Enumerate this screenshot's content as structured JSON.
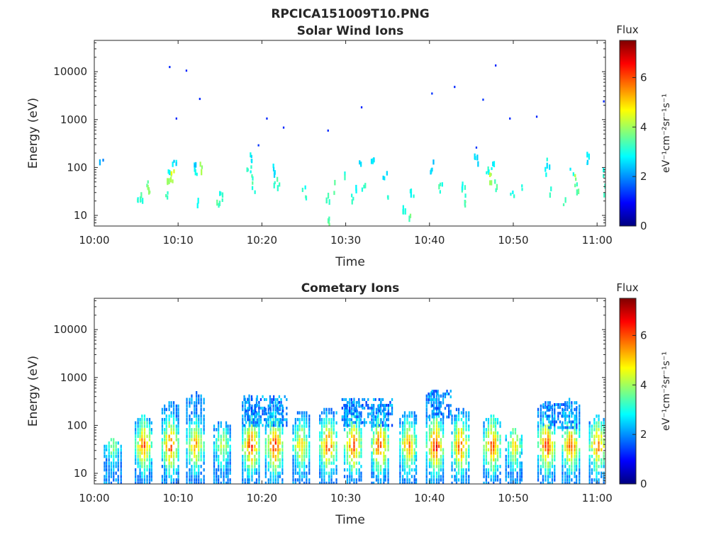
{
  "figure_title": "RPCICA151009T10.PNG",
  "colormap": [
    "#00007f",
    "#0000ff",
    "#007fff",
    "#00ffff",
    "#7fff7f",
    "#ffff00",
    "#ff7f00",
    "#ff0000",
    "#7f0000"
  ],
  "chart_data": [
    {
      "type": "heatmap",
      "title": "Solar Wind Ions",
      "xlabel": "Time",
      "ylabel": "Energy (eV)",
      "yscale": "log",
      "xlim": [
        0,
        61
      ],
      "ylim": [
        6,
        45000
      ],
      "x_ticks": [
        0,
        10,
        20,
        30,
        40,
        50,
        60
      ],
      "x_tick_labels": [
        "10:00",
        "10:10",
        "10:20",
        "10:30",
        "10:40",
        "10:50",
        "11:00"
      ],
      "y_ticks": [
        10,
        100,
        1000,
        10000
      ],
      "y_tick_labels": [
        "10",
        "100",
        "1000",
        "10000"
      ],
      "colorbar": {
        "title": "Flux",
        "unit_label": "eV⁻¹cm⁻²sr⁻¹s⁻¹",
        "range": [
          0,
          7.5
        ],
        "ticks": [
          0,
          2,
          4,
          6
        ],
        "tick_labels": [
          "0",
          "2",
          "4",
          "6"
        ]
      },
      "points": [
        [
          0.8,
          110,
          2.2
        ],
        [
          5.2,
          25,
          3
        ],
        [
          5.6,
          20,
          3.2
        ],
        [
          6.1,
          40,
          3.6
        ],
        [
          6.4,
          38,
          3.8
        ],
        [
          8.6,
          30,
          3.4
        ],
        [
          8.8,
          55,
          4
        ],
        [
          9.0,
          85,
          2.8
        ],
        [
          9.3,
          65,
          4.3
        ],
        [
          9.5,
          120,
          2.6
        ],
        [
          11.8,
          90,
          2.6
        ],
        [
          12.1,
          70,
          3.2
        ],
        [
          12.4,
          20,
          3.0
        ],
        [
          12.8,
          100,
          3.8
        ],
        [
          14.8,
          15,
          3.4
        ],
        [
          15.0,
          25,
          3.2
        ],
        [
          18.4,
          90,
          3.0
        ],
        [
          18.7,
          60,
          3.3
        ],
        [
          18.9,
          40,
          2.8
        ],
        [
          18.6,
          180,
          2.7
        ],
        [
          21.3,
          90,
          2.8
        ],
        [
          21.6,
          50,
          3.4
        ],
        [
          21.9,
          38,
          3.0
        ],
        [
          25.0,
          30,
          3.1
        ],
        [
          27.8,
          20,
          3.2
        ],
        [
          28.0,
          8,
          3.4
        ],
        [
          28.5,
          38,
          3.3
        ],
        [
          30.0,
          70,
          3.0
        ],
        [
          30.8,
          25,
          3.1
        ],
        [
          31.3,
          35,
          2.9
        ],
        [
          31.7,
          100,
          2.8
        ],
        [
          32.0,
          40,
          3.1
        ],
        [
          33.2,
          110,
          2.6
        ],
        [
          34.6,
          70,
          2.8
        ],
        [
          35.0,
          30,
          3.0
        ],
        [
          37.0,
          15,
          3.2
        ],
        [
          37.4,
          8,
          3.5
        ],
        [
          37.8,
          25,
          3.0
        ],
        [
          40.2,
          100,
          2.5
        ],
        [
          41.3,
          35,
          3.2
        ],
        [
          43.8,
          40,
          3.1
        ],
        [
          44.0,
          30,
          3.0
        ],
        [
          44.3,
          15,
          3.3
        ],
        [
          45.5,
          150,
          2.4
        ],
        [
          46.8,
          70,
          3.0
        ],
        [
          47.2,
          55,
          4.1
        ],
        [
          47.5,
          90,
          2.8
        ],
        [
          47.8,
          40,
          3.4
        ],
        [
          49.8,
          30,
          3.0
        ],
        [
          51.0,
          35,
          3.1
        ],
        [
          53.9,
          70,
          3.0
        ],
        [
          54.1,
          120,
          2.8
        ],
        [
          54.3,
          30,
          3.3
        ],
        [
          56.0,
          20,
          3.2
        ],
        [
          56.9,
          80,
          2.8
        ],
        [
          57.2,
          60,
          4.0
        ],
        [
          57.5,
          40,
          3.4
        ],
        [
          58.8,
          160,
          2.6
        ],
        [
          60.5,
          70,
          3.0
        ],
        [
          60.8,
          35,
          3.2
        ]
      ],
      "sparse_points": [
        [
          8.9,
          12500,
          1.2
        ],
        [
          10.9,
          10500,
          1.2
        ],
        [
          12.5,
          2700,
          1.2
        ],
        [
          9.7,
          1050,
          1.2
        ],
        [
          19.5,
          290,
          1.3
        ],
        [
          20.5,
          1050,
          1.2
        ],
        [
          22.5,
          680,
          1.2
        ],
        [
          27.8,
          590,
          1.2
        ],
        [
          31.8,
          1800,
          1.2
        ],
        [
          40.2,
          3500,
          1.3
        ],
        [
          42.9,
          4800,
          1.2
        ],
        [
          45.5,
          260,
          1.3
        ],
        [
          46.3,
          2600,
          1.3
        ],
        [
          47.8,
          13500,
          1.2
        ],
        [
          49.5,
          1050,
          1.2
        ],
        [
          52.7,
          1150,
          1.2
        ],
        [
          60.7,
          2400,
          1.2
        ]
      ]
    },
    {
      "type": "heatmap",
      "title": "Cometary Ions",
      "xlabel": "Time",
      "ylabel": "Energy (eV)",
      "yscale": "log",
      "xlim": [
        0,
        61
      ],
      "ylim": [
        6,
        45000
      ],
      "x_ticks": [
        0,
        10,
        20,
        30,
        40,
        50,
        60
      ],
      "x_tick_labels": [
        "10:00",
        "10:10",
        "10:20",
        "10:30",
        "10:40",
        "10:50",
        "11:00"
      ],
      "y_ticks": [
        10,
        100,
        1000,
        10000
      ],
      "y_tick_labels": [
        "10",
        "100",
        "1000",
        "10000"
      ],
      "colorbar": {
        "title": "Flux",
        "unit_label": "eV⁻¹cm⁻²sr⁻¹s⁻¹",
        "range": [
          0,
          7.5
        ],
        "ticks": [
          0,
          2,
          4,
          6
        ],
        "tick_labels": [
          "0",
          "2",
          "4",
          "6"
        ]
      },
      "bursts": [
        {
          "t": 2.1,
          "peak": 4.2,
          "top": 50
        },
        {
          "t": 5.8,
          "peak": 6.2,
          "top": 150
        },
        {
          "t": 9.0,
          "peak": 6.5,
          "top": 300
        },
        {
          "t": 12.0,
          "peak": 5.8,
          "top": 450
        },
        {
          "t": 15.2,
          "peak": 4.6,
          "top": 120
        },
        {
          "t": 18.6,
          "peak": 6.6,
          "top": 400
        },
        {
          "t": 21.4,
          "peak": 6.8,
          "top": 300
        },
        {
          "t": 24.6,
          "peak": 5.5,
          "top": 200
        },
        {
          "t": 27.8,
          "peak": 6.4,
          "top": 220
        },
        {
          "t": 30.8,
          "peak": 6.6,
          "top": 350
        },
        {
          "t": 34.0,
          "peak": 6.6,
          "top": 280
        },
        {
          "t": 37.4,
          "peak": 6.0,
          "top": 200
        },
        {
          "t": 40.6,
          "peak": 6.9,
          "top": 500
        },
        {
          "t": 43.6,
          "peak": 6.4,
          "top": 220
        },
        {
          "t": 47.4,
          "peak": 6.5,
          "top": 150
        },
        {
          "t": 50.0,
          "peak": 5.2,
          "top": 80
        },
        {
          "t": 53.9,
          "peak": 6.6,
          "top": 300
        },
        {
          "t": 56.8,
          "peak": 6.4,
          "top": 350
        },
        {
          "t": 60.0,
          "peak": 6.2,
          "top": 150
        }
      ],
      "high_energy_bands": [
        {
          "from": 17.8,
          "to": 23.0,
          "low": 100,
          "high": 450
        },
        {
          "from": 29.5,
          "to": 35.5,
          "low": 100,
          "high": 380
        },
        {
          "from": 39.8,
          "to": 42.5,
          "low": 150,
          "high": 550
        },
        {
          "from": 53.5,
          "to": 57.5,
          "low": 90,
          "high": 300
        }
      ]
    }
  ]
}
